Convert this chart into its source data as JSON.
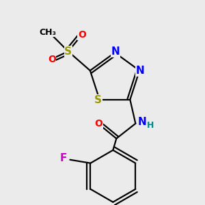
{
  "bg_color": "#ebebeb",
  "bond_color": "#000000",
  "atom_colors": {
    "S": "#999900",
    "N": "#0000ff",
    "O": "#ff0000",
    "F": "#cc00cc",
    "C": "#000000",
    "H": "#008888"
  },
  "figsize": [
    3.0,
    3.0
  ],
  "dpi": 100,
  "lw": 1.6
}
